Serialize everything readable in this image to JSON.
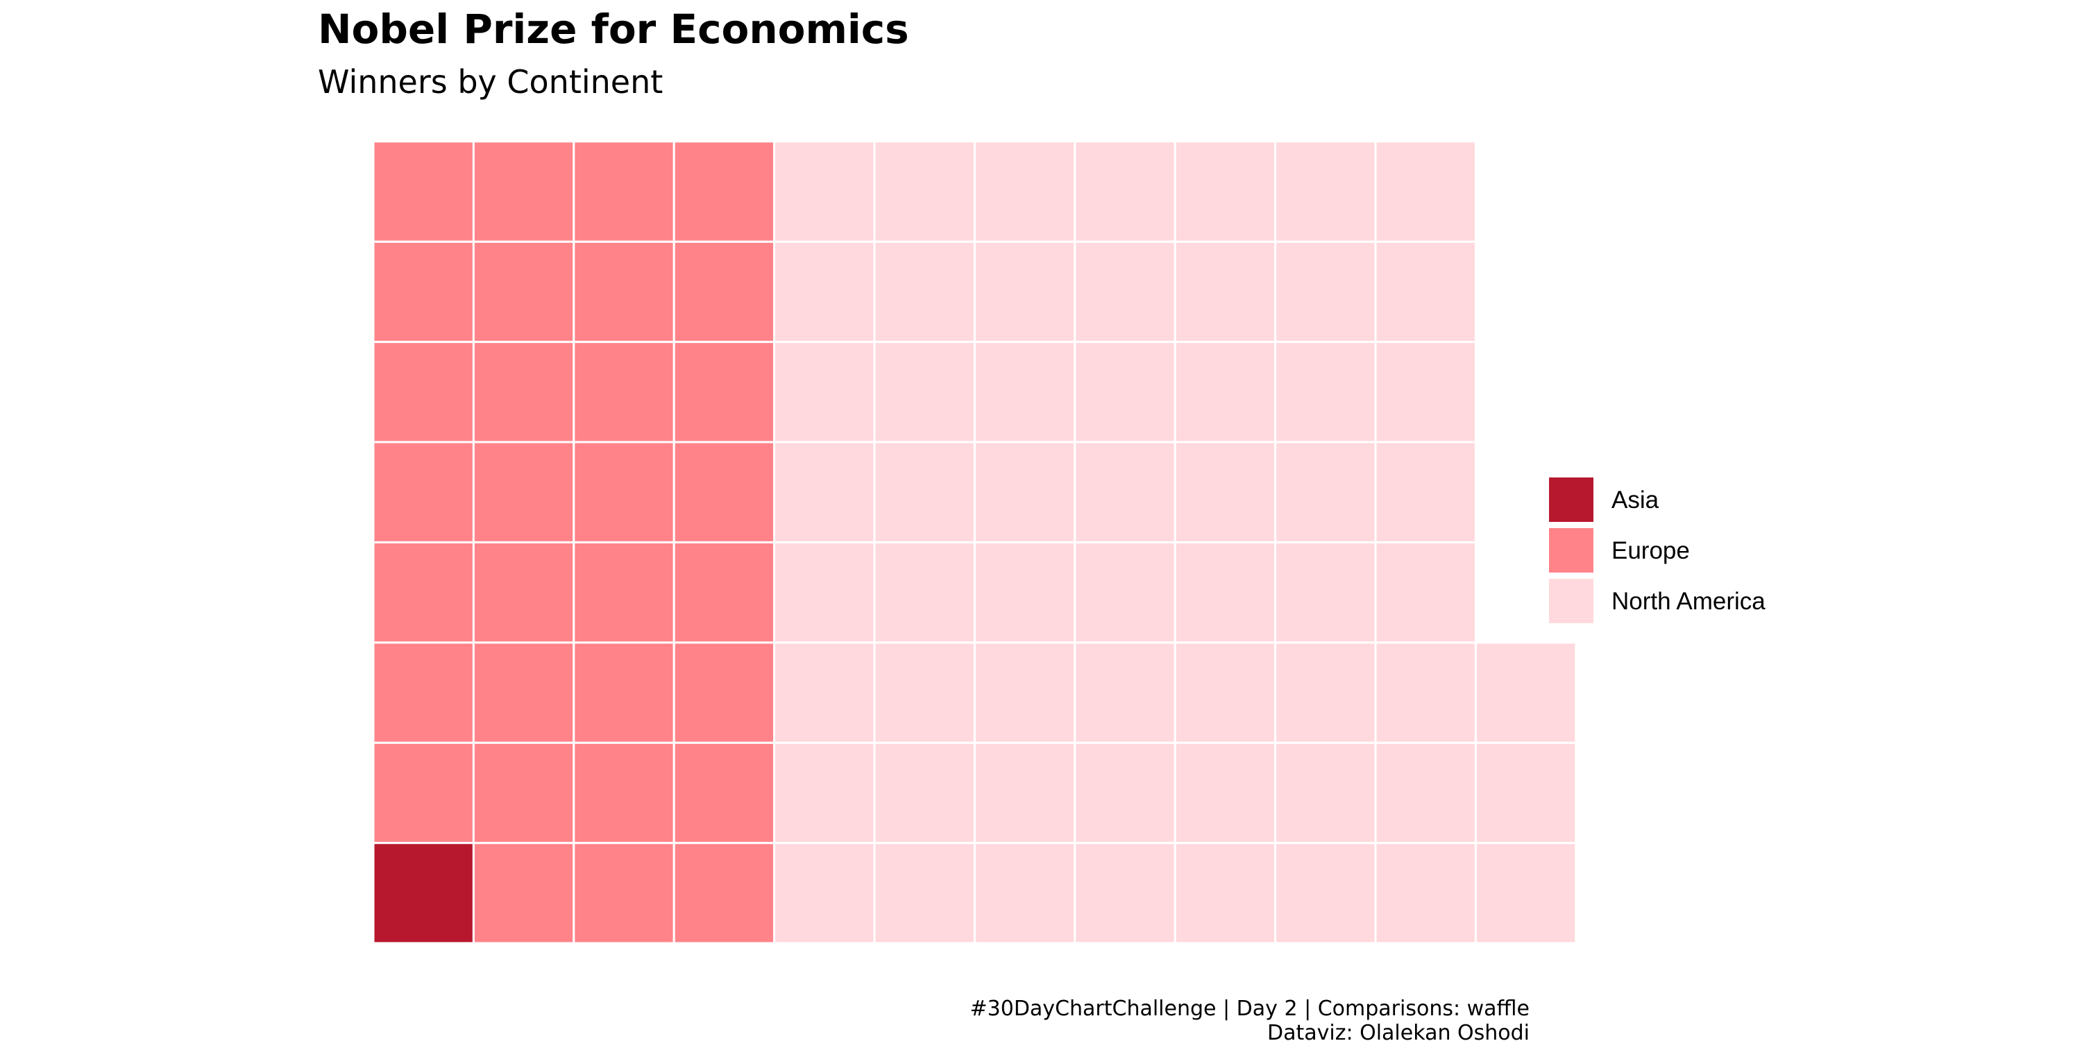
{
  "chart_data": {
    "type": "waffle",
    "title": "Nobel Prize for Economics",
    "subtitle": "Winners by Continent",
    "categories": [
      "Asia",
      "Europe",
      "North America"
    ],
    "values": [
      1,
      31,
      59
    ],
    "colors": [
      "#B8182E",
      "#FF8389",
      "#FFD9DD"
    ],
    "rows": 8,
    "fill_order": "column-wise, bottom to top, left to right",
    "legend": {
      "position": "right",
      "items": [
        "Asia",
        "Europe",
        "North America"
      ]
    },
    "caption": {
      "line1": "#30DayChartChallenge | Day 2 | Comparisons: waffle",
      "line2": "Dataviz: Olalekan Oshodi"
    }
  }
}
